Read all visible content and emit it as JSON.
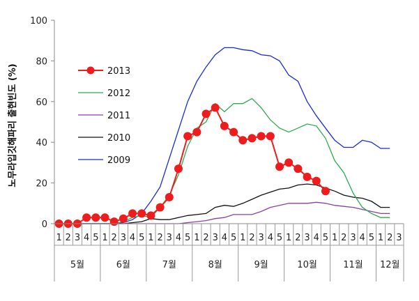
{
  "chart_data": {
    "type": "line",
    "ylabel": "노무라입깃해파리 출현빈도 (%)",
    "ylim": [
      0,
      100
    ],
    "yticks": [
      0,
      20,
      40,
      60,
      80,
      100
    ],
    "week_labels": [
      "1",
      "2",
      "3",
      "4",
      "5",
      "1",
      "2",
      "3",
      "4",
      "5",
      "1",
      "2",
      "3",
      "4",
      "5",
      "1",
      "2",
      "3",
      "4",
      "5",
      "1",
      "2",
      "3",
      "4",
      "5",
      "1",
      "2",
      "3",
      "4",
      "5",
      "1",
      "2",
      "3",
      "4",
      "5",
      "1",
      "2",
      "3"
    ],
    "months": [
      {
        "label": "5월",
        "start": 0,
        "end": 4
      },
      {
        "label": "6월",
        "start": 5,
        "end": 9
      },
      {
        "label": "7월",
        "start": 10,
        "end": 14
      },
      {
        "label": "8월",
        "start": 15,
        "end": 19
      },
      {
        "label": "9월",
        "start": 20,
        "end": 24
      },
      {
        "label": "10월",
        "start": 25,
        "end": 29
      },
      {
        "label": "11월",
        "start": 30,
        "end": 34
      },
      {
        "label": "12월",
        "start": 35,
        "end": 37
      }
    ],
    "legend_position": "left",
    "series": [
      {
        "name": "2013",
        "color": "#ee1c1c",
        "marker": "circle",
        "values": [
          0,
          0,
          0,
          3,
          3,
          3,
          1,
          2.5,
          5,
          5,
          4,
          8,
          13,
          27,
          43,
          45,
          54,
          57,
          48,
          45,
          41,
          42,
          43,
          43,
          28,
          30,
          27,
          23,
          21,
          16,
          null,
          null,
          null,
          null,
          null,
          null,
          null,
          null
        ]
      },
      {
        "name": "2012",
        "color": "#2eaa50",
        "marker": "none",
        "values": [
          0,
          0,
          0,
          0,
          0,
          0,
          0,
          1,
          3,
          4,
          3,
          8,
          14,
          24,
          38,
          47,
          50,
          59,
          55,
          59,
          59,
          61.5,
          57,
          51,
          47,
          45,
          47,
          49,
          48,
          42,
          31,
          25,
          15,
          8,
          5,
          3,
          3,
          null
        ]
      },
      {
        "name": "2011",
        "color": "#8a3ea8",
        "marker": "none",
        "values": [
          0,
          0,
          0,
          0,
          0,
          0,
          0,
          0,
          0,
          0,
          0,
          0,
          0,
          0,
          0.5,
          1,
          1.5,
          2.5,
          3,
          4.5,
          4.5,
          4.5,
          6,
          8,
          9,
          10,
          10,
          10,
          10.5,
          10,
          9,
          8.5,
          8,
          7,
          6,
          5,
          5,
          null
        ]
      },
      {
        "name": "2010",
        "color": "#111111",
        "marker": "none",
        "values": [
          0,
          0,
          0,
          0,
          0,
          0,
          0,
          0,
          0.5,
          1,
          2.5,
          2,
          2,
          3,
          4,
          4.5,
          5,
          8,
          9,
          8.5,
          10,
          12,
          14,
          15.5,
          17,
          17.5,
          19,
          19.5,
          19,
          17.5,
          16,
          14,
          13,
          12.5,
          11,
          8,
          8,
          null
        ]
      },
      {
        "name": "2009",
        "color": "#1a2ad8",
        "marker": "none",
        "values": [
          0,
          0,
          0,
          0,
          0,
          0,
          0,
          0.5,
          2,
          5,
          11,
          18,
          32,
          46,
          60,
          70,
          77,
          83,
          86.5,
          86.5,
          85.5,
          85,
          83,
          82.5,
          80,
          73,
          70,
          60,
          53,
          47,
          41,
          37.5,
          37.5,
          41,
          40,
          37,
          37,
          null
        ]
      }
    ]
  }
}
